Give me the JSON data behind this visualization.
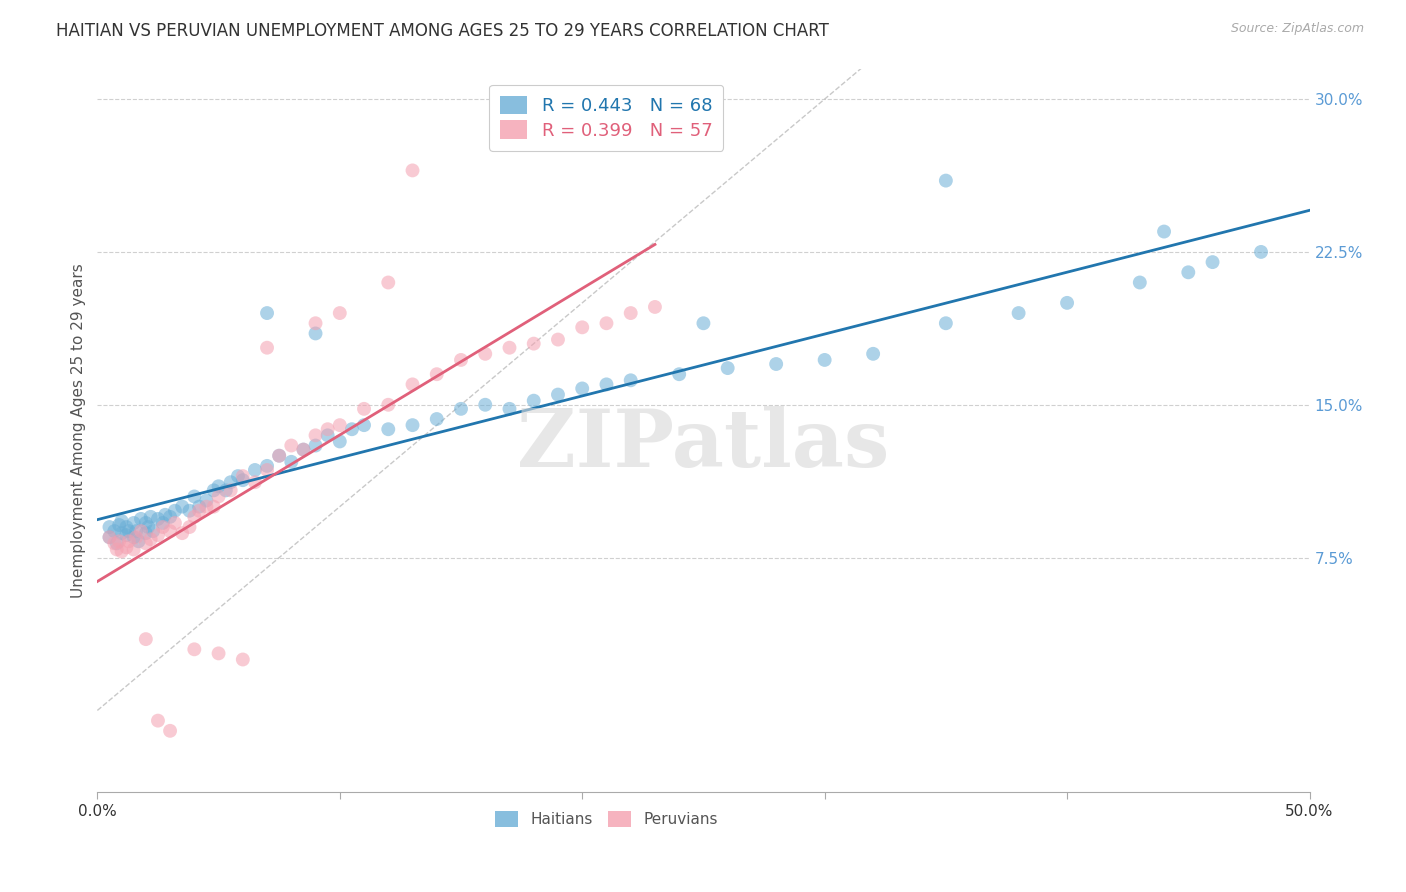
{
  "title": "HAITIAN VS PERUVIAN UNEMPLOYMENT AMONG AGES 25 TO 29 YEARS CORRELATION CHART",
  "source": "Source: ZipAtlas.com",
  "ylabel": "Unemployment Among Ages 25 to 29 years",
  "legend_haitian": "Haitians",
  "legend_peruvian": "Peruvians",
  "R_haitian": 0.443,
  "N_haitian": 68,
  "R_peruvian": 0.399,
  "N_peruvian": 57,
  "haitian_color": "#6aaed6",
  "peruvian_color": "#f4a0b0",
  "haitian_line_color": "#2176ae",
  "peruvian_line_color": "#e0607a",
  "xmin": 0.0,
  "xmax": 0.5,
  "ymin": -0.04,
  "ymax": 0.315,
  "yticks": [
    0.075,
    0.15,
    0.225,
    0.3
  ],
  "ytick_labels": [
    "7.5%",
    "15.0%",
    "22.5%",
    "30.0%"
  ],
  "haitian_x": [
    0.005,
    0.005,
    0.007,
    0.008,
    0.009,
    0.01,
    0.01,
    0.012,
    0.012,
    0.013,
    0.015,
    0.015,
    0.016,
    0.017,
    0.018,
    0.02,
    0.02,
    0.021,
    0.022,
    0.023,
    0.025,
    0.027,
    0.028,
    0.03,
    0.032,
    0.035,
    0.038,
    0.04,
    0.042,
    0.045,
    0.048,
    0.05,
    0.053,
    0.055,
    0.058,
    0.06,
    0.065,
    0.07,
    0.075,
    0.08,
    0.085,
    0.09,
    0.095,
    0.1,
    0.105,
    0.11,
    0.12,
    0.13,
    0.14,
    0.15,
    0.16,
    0.17,
    0.18,
    0.19,
    0.2,
    0.21,
    0.22,
    0.24,
    0.26,
    0.28,
    0.3,
    0.32,
    0.35,
    0.38,
    0.4,
    0.43,
    0.46,
    0.48
  ],
  "haitian_y": [
    0.09,
    0.085,
    0.088,
    0.082,
    0.091,
    0.087,
    0.093,
    0.086,
    0.09,
    0.088,
    0.085,
    0.092,
    0.088,
    0.083,
    0.094,
    0.087,
    0.092,
    0.09,
    0.095,
    0.088,
    0.094,
    0.092,
    0.096,
    0.095,
    0.098,
    0.1,
    0.098,
    0.105,
    0.1,
    0.103,
    0.108,
    0.11,
    0.108,
    0.112,
    0.115,
    0.113,
    0.118,
    0.12,
    0.125,
    0.122,
    0.128,
    0.13,
    0.135,
    0.132,
    0.138,
    0.14,
    0.138,
    0.14,
    0.143,
    0.148,
    0.15,
    0.148,
    0.152,
    0.155,
    0.158,
    0.16,
    0.162,
    0.165,
    0.168,
    0.17,
    0.172,
    0.175,
    0.19,
    0.195,
    0.2,
    0.21,
    0.22,
    0.225
  ],
  "haitian_extra_x": [
    0.07,
    0.09,
    0.25,
    0.35,
    0.44,
    0.45
  ],
  "haitian_extra_y": [
    0.195,
    0.185,
    0.19,
    0.26,
    0.235,
    0.215
  ],
  "peruvian_x": [
    0.005,
    0.007,
    0.008,
    0.009,
    0.01,
    0.012,
    0.013,
    0.015,
    0.016,
    0.018,
    0.02,
    0.022,
    0.025,
    0.027,
    0.03,
    0.032,
    0.035,
    0.038,
    0.04,
    0.042,
    0.045,
    0.048,
    0.05,
    0.055,
    0.06,
    0.065,
    0.07,
    0.075,
    0.08,
    0.085,
    0.09,
    0.095,
    0.1,
    0.11,
    0.12,
    0.13,
    0.14,
    0.15,
    0.16,
    0.17,
    0.18,
    0.19,
    0.2,
    0.21,
    0.22,
    0.23,
    0.07,
    0.09,
    0.1,
    0.12,
    0.13,
    0.04,
    0.05,
    0.06,
    0.02,
    0.025,
    0.03
  ],
  "peruvian_y": [
    0.085,
    0.082,
    0.079,
    0.083,
    0.078,
    0.08,
    0.083,
    0.079,
    0.085,
    0.088,
    0.082,
    0.084,
    0.086,
    0.09,
    0.088,
    0.092,
    0.087,
    0.09,
    0.095,
    0.098,
    0.1,
    0.1,
    0.105,
    0.108,
    0.115,
    0.112,
    0.118,
    0.125,
    0.13,
    0.128,
    0.135,
    0.138,
    0.14,
    0.148,
    0.15,
    0.16,
    0.165,
    0.172,
    0.175,
    0.178,
    0.18,
    0.182,
    0.188,
    0.19,
    0.195,
    0.198,
    0.178,
    0.19,
    0.195,
    0.21,
    0.265,
    0.03,
    0.028,
    0.025,
    0.035,
    -0.005,
    -0.01
  ],
  "background_color": "#ffffff",
  "grid_color": "#d0d0d0",
  "title_fontsize": 12,
  "axis_label_fontsize": 11,
  "tick_fontsize": 11,
  "marker_size": 100,
  "marker_alpha": 0.55,
  "line_width": 2.0,
  "watermark": "ZIPatlas",
  "watermark_color": "#d8d8d8"
}
